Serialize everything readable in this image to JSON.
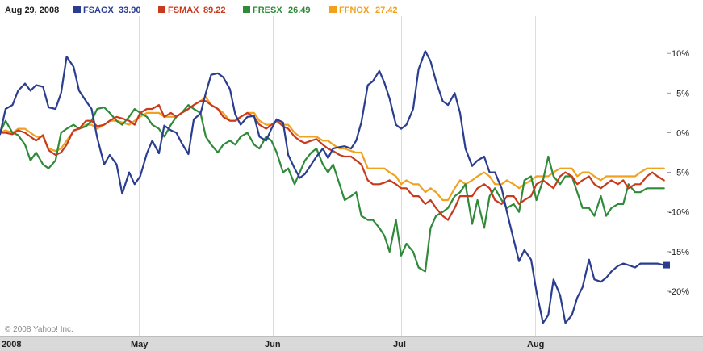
{
  "legend": {
    "date": "Aug 29, 2008",
    "entries": [
      {
        "symbol": "FSAGX",
        "value": "33.90",
        "color": "#2a3d8f"
      },
      {
        "symbol": "FSMAX",
        "value": "89.22",
        "color": "#c83a1e"
      },
      {
        "symbol": "FRESX",
        "value": "26.49",
        "color": "#2f8a3a"
      },
      {
        "symbol": "FFNOX",
        "value": "27.42",
        "color": "#f0a21e"
      }
    ]
  },
  "copyright": "© 2008 Yahoo! Inc.",
  "chart_data": {
    "type": "line",
    "title": "",
    "xlabel": "",
    "ylabel": "",
    "x_ticks": [
      "2008",
      "May",
      "Jun",
      "Jul",
      "Aug"
    ],
    "y_ticks": [
      {
        "value": 10,
        "label": "10%"
      },
      {
        "value": 5,
        "label": "5%"
      },
      {
        "value": 0,
        "label": "0%"
      },
      {
        "value": -5,
        "label": "-5%"
      },
      {
        "value": -10,
        "label": "-10%"
      },
      {
        "value": -15,
        "label": "-15%"
      },
      {
        "value": -20,
        "label": "-20%"
      }
    ],
    "ylim": [
      -25.7,
      14.5
    ],
    "x_range_months": [
      0,
      5
    ],
    "grid": "vertical",
    "legend_position": "top-left",
    "series": [
      {
        "name": "FSAGX",
        "color": "#2a3d8f",
        "last_marker": true,
        "x": [
          0,
          0.04,
          0.09,
          0.13,
          0.18,
          0.22,
          0.26,
          0.31,
          0.35,
          0.4,
          0.44,
          0.48,
          0.53,
          0.57,
          0.62,
          0.66,
          0.7,
          0.75,
          0.79,
          0.84,
          0.88,
          0.93,
          0.97,
          1.01,
          1.06,
          1.1,
          1.15,
          1.19,
          1.24,
          1.28,
          1.32,
          1.37,
          1.41,
          1.46,
          1.5,
          1.54,
          1.59,
          1.63,
          1.68,
          1.72,
          1.76,
          1.81,
          1.86,
          1.9,
          1.95,
          1.99,
          2.03,
          2.08,
          2.12,
          2.17,
          2.21,
          2.25,
          2.3,
          2.34,
          2.39,
          2.43,
          2.47,
          2.52,
          2.56,
          2.61,
          2.65,
          2.69,
          2.74,
          2.78,
          2.83,
          2.87,
          2.91,
          2.96,
          3.0,
          3.04,
          3.09,
          3.13,
          3.18,
          3.22,
          3.26,
          3.31,
          3.35,
          3.4,
          3.44,
          3.48,
          3.53,
          3.57,
          3.62,
          3.66,
          3.7,
          3.75,
          3.79,
          3.84,
          3.88,
          3.92,
          3.97,
          4.01,
          4.06,
          4.1,
          4.14,
          4.19,
          4.23,
          4.28,
          4.32,
          4.36,
          4.41,
          4.45,
          4.5,
          4.54,
          4.58,
          4.63,
          4.67,
          4.71,
          4.76,
          4.8,
          4.85,
          4.89,
          4.93,
          4.98,
          5.0
        ],
        "values": [
          -0.2,
          3.0,
          3.5,
          5.3,
          6.2,
          5.3,
          6.0,
          5.8,
          3.2,
          3.0,
          5.0,
          9.6,
          8.3,
          5.3,
          4.0,
          3.0,
          -0.6,
          -4.0,
          -2.8,
          -4.0,
          -7.7,
          -5.0,
          -6.5,
          -5.5,
          -2.6,
          -1.0,
          -2.6,
          0.9,
          0.3,
          0,
          -1.3,
          -2.7,
          1.7,
          2.4,
          5.0,
          7.3,
          7.5,
          7.0,
          5.5,
          2.3,
          1.0,
          2.0,
          2.1,
          -0.5,
          -1.0,
          0.5,
          1.7,
          1.3,
          -2.8,
          -4.5,
          -5.7,
          -5.2,
          -4.0,
          -3.0,
          -2.0,
          -3.2,
          -2.0,
          -1.8,
          -1.7,
          -2.0,
          -1.0,
          1.3,
          6.0,
          6.5,
          7.8,
          6.3,
          4.3,
          1.0,
          0.5,
          1.0,
          3.0,
          8.0,
          10.3,
          9.0,
          6.5,
          4.0,
          3.5,
          5.0,
          2.5,
          -2.0,
          -4.2,
          -3.5,
          -3.0,
          -5.0,
          -5.0,
          -7.0,
          -10.0,
          -13.5,
          -16.2,
          -14.8,
          -16.0,
          -20.0,
          -24.0,
          -23.0,
          -18.5,
          -20.5,
          -24.0,
          -23.0,
          -20.8,
          -19.5,
          -16.0,
          -18.5,
          -18.8,
          -18.3,
          -17.5,
          -16.8,
          -16.5,
          -16.7,
          -17.0,
          -16.5,
          -16.5,
          -16.5,
          -16.5,
          -16.7,
          -16.7
        ],
        "trim_last": 13
      },
      {
        "name": "FSMAX",
        "color": "#c83a1e",
        "last_marker": false,
        "x": [
          0,
          0.04,
          0.09,
          0.13,
          0.18,
          0.22,
          0.26,
          0.31,
          0.35,
          0.4,
          0.44,
          0.48,
          0.53,
          0.57,
          0.62,
          0.66,
          0.7,
          0.75,
          0.79,
          0.84,
          0.88,
          0.93,
          0.97,
          1.01,
          1.06,
          1.1,
          1.15,
          1.19,
          1.24,
          1.28,
          1.32,
          1.37,
          1.41,
          1.46,
          1.5,
          1.54,
          1.59,
          1.63,
          1.68,
          1.72,
          1.76,
          1.81,
          1.86,
          1.9,
          1.95,
          1.99,
          2.03,
          2.08,
          2.12,
          2.17,
          2.21,
          2.25,
          2.3,
          2.34,
          2.39,
          2.43,
          2.47,
          2.52,
          2.56,
          2.61,
          2.65,
          2.69,
          2.74,
          2.78,
          2.83,
          2.87,
          2.91,
          2.96,
          3.0,
          3.04,
          3.09,
          3.13,
          3.18,
          3.22,
          3.26,
          3.31,
          3.35,
          3.4,
          3.44,
          3.48,
          3.53,
          3.57,
          3.62,
          3.66,
          3.7,
          3.75,
          3.79,
          3.84,
          3.88,
          3.92,
          3.97,
          4.01,
          4.06,
          4.1,
          4.14,
          4.19,
          4.23,
          4.28,
          4.32,
          4.36,
          4.41,
          4.45,
          4.5,
          4.54,
          4.58,
          4.63,
          4.67,
          4.71,
          4.76,
          4.8,
          4.85,
          4.89,
          4.93,
          4.98
        ],
        "values": [
          0,
          0,
          -0.2,
          0.3,
          0,
          -0.5,
          -1.0,
          -0.3,
          -2.2,
          -2.8,
          -2.5,
          -1.5,
          0.3,
          0.5,
          1.5,
          1.5,
          0.8,
          1.0,
          1.5,
          2.0,
          1.8,
          1.5,
          1.0,
          2.5,
          3.0,
          3.0,
          3.5,
          2.0,
          2.5,
          2.0,
          2.5,
          3.0,
          3.5,
          4.0,
          4.0,
          3.5,
          3.0,
          2.0,
          1.5,
          1.5,
          2.0,
          2.5,
          2.0,
          1.0,
          0.5,
          1.0,
          1.5,
          0.8,
          0.5,
          -0.5,
          -1.0,
          -1.3,
          -1.0,
          -0.8,
          -1.5,
          -2.0,
          -2.3,
          -2.8,
          -3.0,
          -3.0,
          -3.5,
          -4.0,
          -6.0,
          -6.5,
          -6.5,
          -6.3,
          -6.0,
          -6.5,
          -7.0,
          -7.0,
          -8.0,
          -8.0,
          -9.0,
          -8.5,
          -9.5,
          -10.5,
          -11.0,
          -9.5,
          -8.0,
          -8.0,
          -8.0,
          -7.0,
          -6.5,
          -7.0,
          -8.5,
          -9.0,
          -8.0,
          -8.0,
          -9.0,
          -8.5,
          -8.0,
          -6.5,
          -6.0,
          -6.5,
          -7.0,
          -5.5,
          -5.0,
          -5.5,
          -6.5,
          -6.0,
          -5.5,
          -6.5,
          -7.0,
          -6.5,
          -6.0,
          -6.5,
          -6.0,
          -7.0,
          -6.5,
          -6.5,
          -5.5,
          -5.0,
          -5.5,
          -6.0
        ]
      },
      {
        "name": "FRESX",
        "color": "#2f8a3a",
        "last_marker": false,
        "x": [
          0,
          0.04,
          0.09,
          0.13,
          0.18,
          0.22,
          0.26,
          0.31,
          0.35,
          0.4,
          0.44,
          0.48,
          0.53,
          0.57,
          0.62,
          0.66,
          0.7,
          0.75,
          0.79,
          0.84,
          0.88,
          0.93,
          0.97,
          1.01,
          1.06,
          1.1,
          1.15,
          1.19,
          1.24,
          1.28,
          1.32,
          1.37,
          1.41,
          1.46,
          1.5,
          1.54,
          1.59,
          1.63,
          1.68,
          1.72,
          1.76,
          1.81,
          1.86,
          1.9,
          1.95,
          1.99,
          2.03,
          2.08,
          2.12,
          2.17,
          2.21,
          2.25,
          2.3,
          2.34,
          2.39,
          2.43,
          2.47,
          2.52,
          2.56,
          2.61,
          2.65,
          2.69,
          2.74,
          2.78,
          2.83,
          2.87,
          2.91,
          2.96,
          3.0,
          3.04,
          3.09,
          3.13,
          3.18,
          3.22,
          3.26,
          3.31,
          3.35,
          3.4,
          3.44,
          3.48,
          3.53,
          3.57,
          3.62,
          3.66,
          3.7,
          3.75,
          3.79,
          3.84,
          3.88,
          3.92,
          3.97,
          4.01,
          4.06,
          4.1,
          4.14,
          4.19,
          4.23,
          4.28,
          4.32,
          4.36,
          4.41,
          4.45,
          4.5,
          4.54,
          4.58,
          4.63,
          4.67,
          4.71,
          4.76,
          4.8,
          4.85,
          4.89,
          4.93,
          4.98
        ],
        "values": [
          0,
          1.5,
          0,
          -0.3,
          -1.5,
          -3.5,
          -2.5,
          -4.0,
          -4.5,
          -3.5,
          0,
          0.5,
          1.0,
          0.5,
          0.8,
          1.5,
          3.0,
          3.2,
          2.5,
          1.5,
          1.0,
          2.0,
          3.0,
          2.5,
          2.0,
          1.0,
          0.5,
          -0.5,
          1.0,
          2.0,
          2.5,
          3.5,
          3.0,
          2.5,
          -0.5,
          -1.5,
          -2.5,
          -1.5,
          -1.0,
          -1.5,
          -0.5,
          0,
          -1.5,
          -2.0,
          -0.5,
          -1.0,
          -2.5,
          -5.0,
          -4.5,
          -6.5,
          -5.0,
          -3.5,
          -2.5,
          -2.0,
          -4.0,
          -5.0,
          -4.0,
          -6.5,
          -8.5,
          -8.0,
          -7.5,
          -10.5,
          -11.0,
          -11.0,
          -12.0,
          -13.0,
          -15.0,
          -11.0,
          -15.5,
          -14.0,
          -15.0,
          -17.0,
          -17.5,
          -12.0,
          -10.5,
          -10.0,
          -9.5,
          -8.0,
          -7.5,
          -6.5,
          -11.5,
          -8.5,
          -12.0,
          -8.0,
          -7.0,
          -8.5,
          -9.5,
          -9.0,
          -10.0,
          -6.0,
          -5.5,
          -8.5,
          -6.0,
          -3.0,
          -5.5,
          -6.5,
          -5.5,
          -5.5,
          -7.5,
          -9.5,
          -9.5,
          -10.5,
          -8.0,
          -10.5,
          -9.5,
          -9.0,
          -9.0,
          -6.5,
          -7.5,
          -7.5,
          -7.0,
          -7.0,
          -7.0,
          -7.0
        ]
      },
      {
        "name": "FFNOX",
        "color": "#f0a21e",
        "last_marker": false,
        "x": [
          0,
          0.04,
          0.09,
          0.13,
          0.18,
          0.22,
          0.26,
          0.31,
          0.35,
          0.4,
          0.44,
          0.48,
          0.53,
          0.57,
          0.62,
          0.66,
          0.7,
          0.75,
          0.79,
          0.84,
          0.88,
          0.93,
          0.97,
          1.01,
          1.06,
          1.1,
          1.15,
          1.19,
          1.24,
          1.28,
          1.32,
          1.37,
          1.41,
          1.46,
          1.5,
          1.54,
          1.59,
          1.63,
          1.68,
          1.72,
          1.76,
          1.81,
          1.86,
          1.9,
          1.95,
          1.99,
          2.03,
          2.08,
          2.12,
          2.17,
          2.21,
          2.25,
          2.3,
          2.34,
          2.39,
          2.43,
          2.47,
          2.52,
          2.56,
          2.61,
          2.65,
          2.69,
          2.74,
          2.78,
          2.83,
          2.87,
          2.91,
          2.96,
          3.0,
          3.04,
          3.09,
          3.13,
          3.18,
          3.22,
          3.26,
          3.31,
          3.35,
          3.4,
          3.44,
          3.48,
          3.53,
          3.57,
          3.62,
          3.66,
          3.7,
          3.75,
          3.79,
          3.84,
          3.88,
          3.92,
          3.97,
          4.01,
          4.06,
          4.1,
          4.14,
          4.19,
          4.23,
          4.28,
          4.32,
          4.36,
          4.41,
          4.45,
          4.5,
          4.54,
          4.58,
          4.63,
          4.67,
          4.71,
          4.76,
          4.8,
          4.85,
          4.89,
          4.93,
          4.98
        ],
        "values": [
          0,
          0.3,
          0,
          0.5,
          0.5,
          0,
          -0.5,
          -0.5,
          -2.0,
          -2.3,
          -2.0,
          -1.0,
          0.2,
          0.5,
          1.0,
          1.0,
          0.5,
          1.0,
          1.5,
          1.5,
          1.3,
          1.0,
          1.5,
          2.0,
          2.5,
          2.5,
          2.5,
          2.0,
          2.0,
          2.0,
          2.5,
          3.0,
          3.5,
          4.0,
          4.5,
          3.5,
          3.0,
          2.5,
          1.5,
          1.5,
          2.0,
          2.5,
          2.5,
          1.5,
          1.0,
          1.0,
          1.5,
          1.0,
          1.0,
          0,
          -0.5,
          -0.5,
          -0.5,
          -0.5,
          -1.0,
          -1.0,
          -1.5,
          -2.0,
          -2.0,
          -2.3,
          -2.5,
          -2.5,
          -4.5,
          -4.5,
          -4.5,
          -4.5,
          -5.0,
          -5.5,
          -6.5,
          -6.0,
          -6.5,
          -6.5,
          -7.5,
          -7.0,
          -7.5,
          -8.5,
          -8.5,
          -7.0,
          -6.0,
          -6.5,
          -6.0,
          -5.5,
          -5.0,
          -5.5,
          -6.5,
          -6.5,
          -6.0,
          -6.5,
          -7.0,
          -6.5,
          -6.0,
          -5.5,
          -5.5,
          -5.5,
          -5.0,
          -4.5,
          -4.5,
          -4.5,
          -5.5,
          -5.0,
          -5.0,
          -5.5,
          -6.0,
          -5.5,
          -5.5,
          -5.5,
          -5.5,
          -5.5,
          -5.5,
          -5.0,
          -4.5,
          -4.5,
          -4.5,
          -4.5
        ]
      }
    ]
  }
}
